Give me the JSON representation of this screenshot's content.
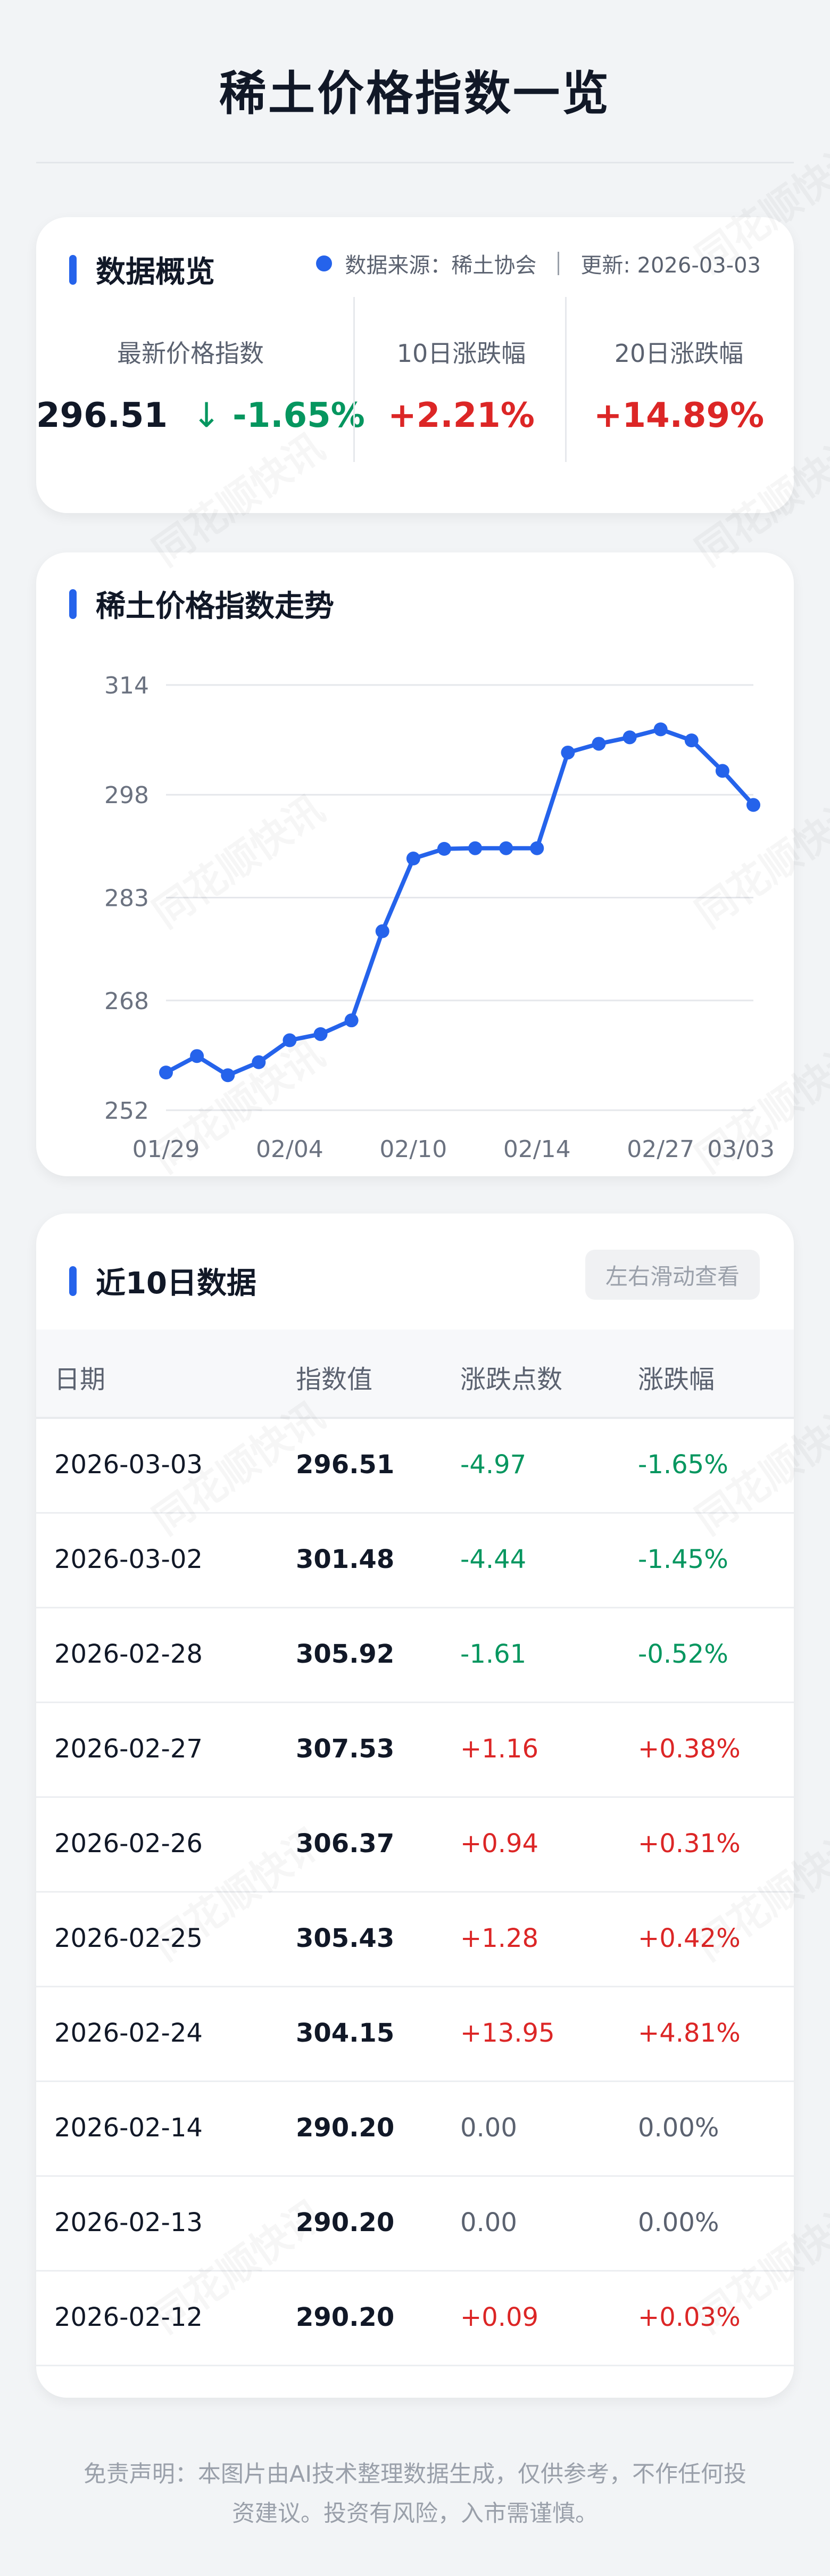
{
  "page": {
    "title": "稀土价格指数一览",
    "watermark": "同花顺快讯"
  },
  "overview": {
    "title": "数据概览",
    "source": "数据来源：稀土协会",
    "updated": "更新: 2026-03-03",
    "stats": [
      {
        "label": "最新价格指数",
        "value": "296.51",
        "arrow": "↓",
        "change": "-1.65%"
      },
      {
        "label": "10日涨跌幅",
        "value": "+2.21%"
      },
      {
        "label": "20日涨跌幅",
        "value": "+14.89%"
      }
    ]
  },
  "trend": {
    "title": "稀土价格指数走势",
    "chart_data": {
      "type": "line",
      "x": [
        "01/29",
        "01/30",
        "02/02",
        "02/03",
        "02/04",
        "02/05",
        "02/06",
        "02/09",
        "02/10",
        "02/11",
        "02/12",
        "02/13",
        "02/14",
        "02/24",
        "02/25",
        "02/26",
        "02/27",
        "02/28",
        "03/02",
        "03/03"
      ],
      "y": [
        257.5,
        259.9,
        257.1,
        259.0,
        262.2,
        263.1,
        265.1,
        278.1,
        288.7,
        290.11,
        290.2,
        290.2,
        290.2,
        304.15,
        305.43,
        306.37,
        307.53,
        305.92,
        301.48,
        296.51
      ],
      "x_ticks": [
        {
          "index": 0,
          "label": "01/29"
        },
        {
          "index": 4,
          "label": "02/04"
        },
        {
          "index": 8,
          "label": "02/10"
        },
        {
          "index": 12,
          "label": "02/14"
        },
        {
          "index": 16,
          "label": "02/27"
        },
        {
          "index": 19,
          "label": "03/03"
        }
      ],
      "y_ticks": [
        "314",
        "298",
        "283",
        "268",
        "252"
      ],
      "y_tick_values": [
        314,
        298,
        283,
        268,
        252
      ],
      "ylim": [
        252,
        314
      ],
      "grid": true,
      "line_color": "#2563eb"
    }
  },
  "table": {
    "title": "近10日数据",
    "scroll_hint": "左右滑动查看",
    "columns": [
      "日期",
      "指数值",
      "涨跌点数",
      "涨跌幅"
    ],
    "rows": [
      {
        "date": "2026-03-03",
        "value": "296.51",
        "change": "-4.97",
        "pct": "-1.65%",
        "dir": "down"
      },
      {
        "date": "2026-03-02",
        "value": "301.48",
        "change": "-4.44",
        "pct": "-1.45%",
        "dir": "down"
      },
      {
        "date": "2026-02-28",
        "value": "305.92",
        "change": "-1.61",
        "pct": "-0.52%",
        "dir": "down"
      },
      {
        "date": "2026-02-27",
        "value": "307.53",
        "change": "+1.16",
        "pct": "+0.38%",
        "dir": "up"
      },
      {
        "date": "2026-02-26",
        "value": "306.37",
        "change": "+0.94",
        "pct": "+0.31%",
        "dir": "up"
      },
      {
        "date": "2026-02-25",
        "value": "305.43",
        "change": "+1.28",
        "pct": "+0.42%",
        "dir": "up"
      },
      {
        "date": "2026-02-24",
        "value": "304.15",
        "change": "+13.95",
        "pct": "+4.81%",
        "dir": "up"
      },
      {
        "date": "2026-02-14",
        "value": "290.20",
        "change": "0.00",
        "pct": "0.00%",
        "dir": "flat"
      },
      {
        "date": "2026-02-13",
        "value": "290.20",
        "change": "0.00",
        "pct": "0.00%",
        "dir": "flat"
      },
      {
        "date": "2026-02-12",
        "value": "290.20",
        "change": "+0.09",
        "pct": "+0.03%",
        "dir": "up"
      }
    ]
  },
  "disclaimer": {
    "line1": "免责声明：本图片由AI技术整理数据生成，仅供参考，不作任何投",
    "line2": "资建议。投资有风险，入市需谨慎。"
  },
  "colors": {
    "accent": "#2563eb",
    "up": "#dc2626",
    "down": "#05965f",
    "flat": "#5b6270"
  }
}
